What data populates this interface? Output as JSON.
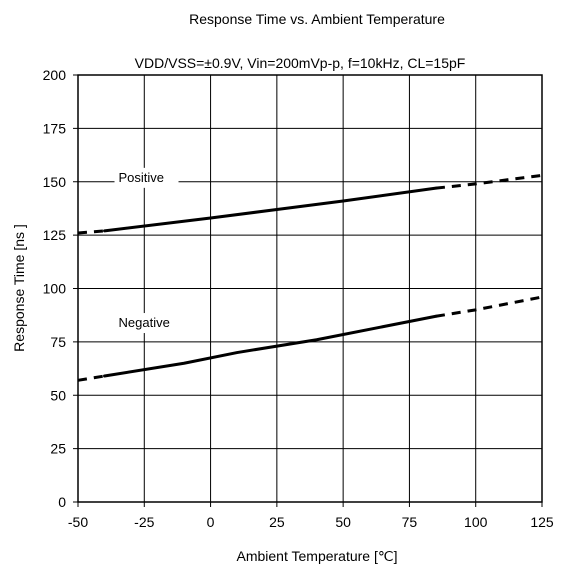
{
  "chart_data": {
    "type": "line",
    "title": "Response Time vs. Ambient Temperature",
    "subtitle": "VDD/VSS=±0.9V, Vin=200mVp-p, f=10kHz, CL=15pF",
    "xlabel": "Ambient Temperature [℃]",
    "ylabel": "Response Time [ns ]",
    "xlim": [
      -50,
      125
    ],
    "ylim": [
      0,
      200
    ],
    "xticks": [
      -50,
      -25,
      0,
      25,
      50,
      75,
      100,
      125
    ],
    "yticks": [
      0,
      25,
      50,
      75,
      100,
      125,
      150,
      175,
      200
    ],
    "grid": true,
    "series": [
      {
        "name": "Positive",
        "color": "#000000",
        "solid": {
          "x": [
            -40,
            0,
            25,
            50,
            85
          ],
          "y": [
            127,
            133,
            137,
            141,
            147
          ]
        },
        "dashed_low": {
          "x": [
            -50,
            -40
          ],
          "y": [
            126,
            127
          ]
        },
        "dashed_high": {
          "x": [
            85,
            100,
            125
          ],
          "y": [
            147,
            149,
            153
          ]
        }
      },
      {
        "name": "Negative",
        "color": "#000000",
        "solid": {
          "x": [
            -40,
            -10,
            10,
            40,
            85
          ],
          "y": [
            59,
            65,
            70,
            76,
            87
          ]
        },
        "dashed_low": {
          "x": [
            -50,
            -40
          ],
          "y": [
            57,
            59
          ]
        },
        "dashed_high": {
          "x": [
            85,
            100,
            125
          ],
          "y": [
            87,
            90,
            96
          ]
        }
      }
    ]
  }
}
